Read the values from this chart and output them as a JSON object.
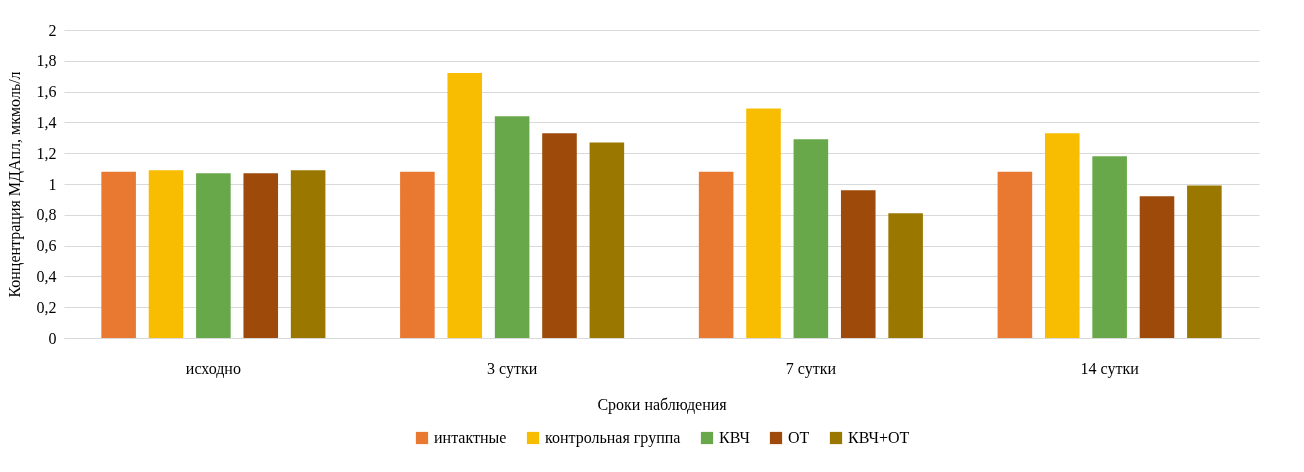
{
  "chart_data": {
    "type": "bar",
    "xlabel": "Сроки   наблюдения",
    "ylabel": "Концентрация МДАпл, мкмоль/л",
    "categories": [
      "исходно",
      "3 сутки",
      "7 сутки",
      "14 сутки"
    ],
    "series": [
      {
        "name": "интактные",
        "color": "#e97830",
        "values": [
          1.08,
          1.08,
          1.08,
          1.08
        ]
      },
      {
        "name": "контрольная группа",
        "color": "#f8bd00",
        "values": [
          1.09,
          1.72,
          1.49,
          1.33
        ]
      },
      {
        "name": "КВЧ",
        "color": "#68a84a",
        "values": [
          1.07,
          1.44,
          1.29,
          1.18
        ]
      },
      {
        "name": "ОТ",
        "color": "#9e4a0a",
        "values": [
          1.07,
          1.33,
          0.96,
          0.92
        ]
      },
      {
        "name": "КВЧ+ОТ",
        "color": "#9a7800",
        "values": [
          1.09,
          1.27,
          0.81,
          0.99
        ]
      }
    ],
    "ylim": [
      0,
      2
    ],
    "yticks": [
      0,
      {
        "value": 0.2,
        "label": "0,2"
      },
      {
        "value": 0.4,
        "label": "0,4"
      },
      {
        "value": 0.6,
        "label": "0,6"
      },
      {
        "value": 0.8,
        "label": "0,8"
      },
      1,
      {
        "value": 1.2,
        "label": "1,2"
      },
      {
        "value": 1.4,
        "label": "1,4"
      },
      {
        "value": 1.6,
        "label": "1,6"
      },
      {
        "value": 1.8,
        "label": "1,8"
      },
      2
    ],
    "grid": "y",
    "legend": "bottom"
  }
}
